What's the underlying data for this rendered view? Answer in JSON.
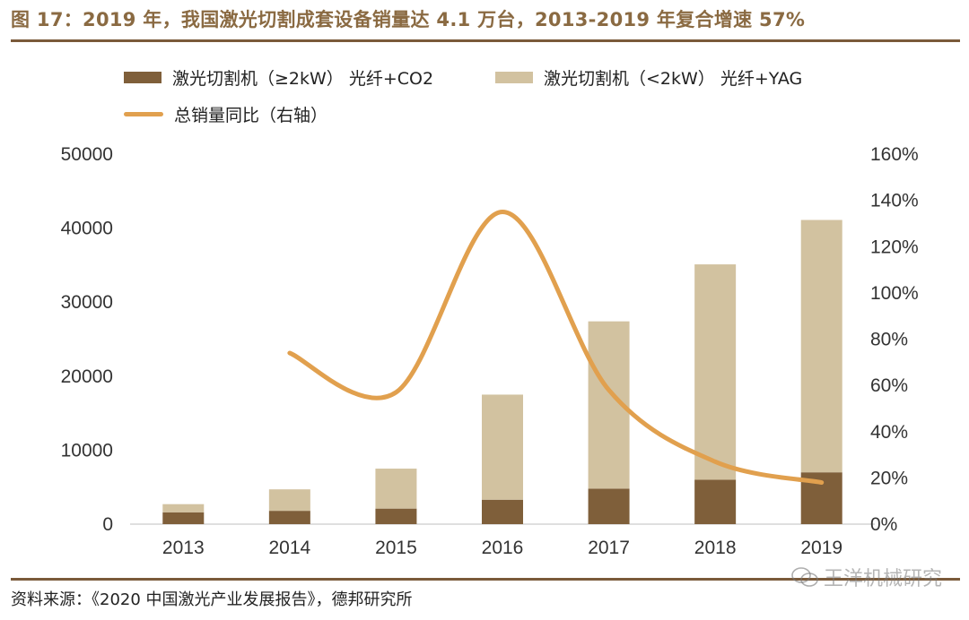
{
  "title": "图 17：2019 年，我国激光切割成套设备销量达 4.1 万台，2013-2019 年复合增速 57%",
  "source": "资料来源：《2020 中国激光产业发展报告》，德邦研究所",
  "watermark": "王洋机械研究",
  "colors": {
    "high_power": "#7f5f3a",
    "low_power": "#d2c2a0",
    "growth_line": "#e1a04e",
    "title": "#8a6a42",
    "rule": "#7a5a3a"
  },
  "legend": {
    "high_power": "激光切割机（≥2kW） 光纤+CO2",
    "low_power": "激光切割机（<2kW） 光纤+YAG",
    "growth_line": "总销量同比（右轴）"
  },
  "chart_data": {
    "type": "bar",
    "stacked": true,
    "categories": [
      "2013",
      "2014",
      "2015",
      "2016",
      "2017",
      "2018",
      "2019"
    ],
    "series": [
      {
        "name": "激光切割机（≥2kW） 光纤+CO2",
        "kind": "bar",
        "axis": "left",
        "values": [
          1600,
          1800,
          2100,
          3300,
          4800,
          6000,
          7000
        ]
      },
      {
        "name": "激光切割机（<2kW） 光纤+YAG",
        "kind": "bar",
        "axis": "left",
        "values": [
          1100,
          2900,
          5400,
          14200,
          22600,
          29100,
          34100
        ]
      },
      {
        "name": "总销量同比（右轴）",
        "kind": "line",
        "axis": "right",
        "values": [
          null,
          74,
          57,
          135,
          58,
          27,
          18
        ]
      }
    ],
    "y_left": {
      "min": 0,
      "max": 50000,
      "ticks": [
        "0",
        "10000",
        "20000",
        "30000",
        "40000",
        "50000"
      ]
    },
    "y_right": {
      "min": 0,
      "max": 160,
      "ticks": [
        "0%",
        "20%",
        "40%",
        "60%",
        "80%",
        "100%",
        "120%",
        "140%",
        "160%"
      ]
    }
  }
}
